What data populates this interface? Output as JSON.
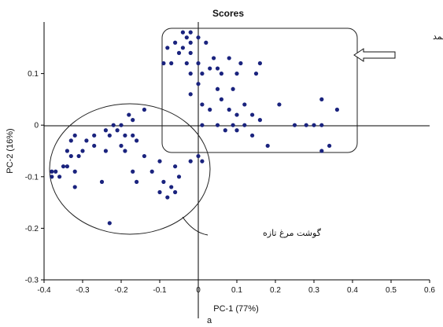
{
  "chart_data": {
    "type": "scatter",
    "title": "Scores",
    "xlabel": "PC-1 (77%)",
    "ylabel": "PC-2 (16%)",
    "caption": "a",
    "xlim": [
      -0.4,
      0.6
    ],
    "ylim": [
      -0.3,
      0.2
    ],
    "xticks": [
      "-0.4",
      "-0.3",
      "-0.2",
      "-0.1",
      "0",
      "0.1",
      "0.2",
      "0.3",
      "0.4",
      "0.5",
      "0.6"
    ],
    "yticks": [
      "0.1",
      "0",
      "-0.1",
      "-0.2",
      "-0.3"
    ],
    "xtick_values": [
      -0.4,
      -0.3,
      -0.2,
      -0.1,
      0,
      0.1,
      0.2,
      0.3,
      0.4,
      0.5,
      0.6
    ],
    "ytick_values": [
      0.1,
      0,
      -0.1,
      -0.2,
      -0.3
    ],
    "point_color": "#1a237e",
    "groups": [
      {
        "label": "گوشت مرغ منجمد",
        "shape": "rounded-rectangle",
        "points": [
          [
            -0.02,
            0.18
          ],
          [
            -0.04,
            0.18
          ],
          [
            -0.03,
            0.17
          ],
          [
            -0.06,
            0.16
          ],
          [
            0.0,
            0.17
          ],
          [
            -0.02,
            0.16
          ],
          [
            0.02,
            0.16
          ],
          [
            -0.08,
            0.15
          ],
          [
            -0.05,
            0.14
          ],
          [
            -0.04,
            0.15
          ],
          [
            -0.02,
            0.14
          ],
          [
            -0.07,
            0.12
          ],
          [
            -0.03,
            0.12
          ],
          [
            0.0,
            0.12
          ],
          [
            0.04,
            0.13
          ],
          [
            0.08,
            0.13
          ],
          [
            0.11,
            0.12
          ],
          [
            0.16,
            0.12
          ],
          [
            -0.09,
            0.12
          ],
          [
            0.03,
            0.11
          ],
          [
            0.05,
            0.11
          ],
          [
            -0.02,
            0.1
          ],
          [
            0.01,
            0.1
          ],
          [
            0.06,
            0.1
          ],
          [
            0.1,
            0.1
          ],
          [
            0.15,
            0.1
          ],
          [
            0.0,
            0.08
          ],
          [
            0.05,
            0.07
          ],
          [
            0.09,
            0.07
          ],
          [
            -0.02,
            0.06
          ],
          [
            0.06,
            0.05
          ],
          [
            0.12,
            0.04
          ],
          [
            0.01,
            0.04
          ],
          [
            0.03,
            0.03
          ],
          [
            0.08,
            0.03
          ],
          [
            0.1,
            0.02
          ],
          [
            0.14,
            0.02
          ],
          [
            0.21,
            0.04
          ],
          [
            0.32,
            0.05
          ],
          [
            0.36,
            0.03
          ],
          [
            0.16,
            0.01
          ],
          [
            0.05,
            0.0
          ],
          [
            0.09,
            0.0
          ],
          [
            0.12,
            0.0
          ],
          [
            0.01,
            0.0
          ],
          [
            0.25,
            0.0
          ],
          [
            0.28,
            0.0
          ],
          [
            0.3,
            0.0
          ],
          [
            0.32,
            0.0
          ],
          [
            0.07,
            -0.01
          ],
          [
            0.1,
            -0.01
          ],
          [
            0.14,
            -0.02
          ],
          [
            0.18,
            -0.04
          ],
          [
            0.34,
            -0.04
          ],
          [
            0.32,
            -0.05
          ]
        ]
      },
      {
        "label": "گوشت مرغ تازه",
        "shape": "ellipse",
        "points": [
          [
            -0.18,
            0.02
          ],
          [
            -0.14,
            0.03
          ],
          [
            -0.17,
            0.01
          ],
          [
            -0.22,
            0.0
          ],
          [
            -0.2,
            0.0
          ],
          [
            -0.24,
            -0.01
          ],
          [
            -0.21,
            -0.01
          ],
          [
            -0.19,
            -0.02
          ],
          [
            -0.23,
            -0.02
          ],
          [
            -0.17,
            -0.02
          ],
          [
            -0.27,
            -0.02
          ],
          [
            -0.32,
            -0.02
          ],
          [
            -0.33,
            -0.03
          ],
          [
            -0.29,
            -0.03
          ],
          [
            -0.2,
            -0.04
          ],
          [
            -0.16,
            -0.03
          ],
          [
            -0.34,
            -0.05
          ],
          [
            -0.3,
            -0.05
          ],
          [
            -0.27,
            -0.04
          ],
          [
            -0.24,
            -0.05
          ],
          [
            -0.19,
            -0.05
          ],
          [
            -0.33,
            -0.06
          ],
          [
            -0.31,
            -0.06
          ],
          [
            -0.35,
            -0.08
          ],
          [
            -0.37,
            -0.09
          ],
          [
            -0.36,
            -0.1
          ],
          [
            -0.32,
            -0.09
          ],
          [
            -0.34,
            -0.08
          ],
          [
            -0.1,
            -0.07
          ],
          [
            -0.14,
            -0.06
          ],
          [
            -0.06,
            -0.08
          ],
          [
            -0.02,
            -0.07
          ],
          [
            0.0,
            -0.06
          ],
          [
            0.01,
            -0.07
          ],
          [
            -0.17,
            -0.09
          ],
          [
            -0.16,
            -0.11
          ],
          [
            -0.12,
            -0.09
          ],
          [
            -0.09,
            -0.11
          ],
          [
            -0.07,
            -0.12
          ],
          [
            -0.05,
            -0.1
          ],
          [
            -0.25,
            -0.11
          ],
          [
            -0.32,
            -0.12
          ],
          [
            -0.38,
            -0.09
          ],
          [
            -0.38,
            -0.1
          ],
          [
            -0.1,
            -0.13
          ],
          [
            -0.08,
            -0.14
          ],
          [
            -0.06,
            -0.13
          ],
          [
            -0.23,
            -0.19
          ]
        ]
      }
    ]
  }
}
